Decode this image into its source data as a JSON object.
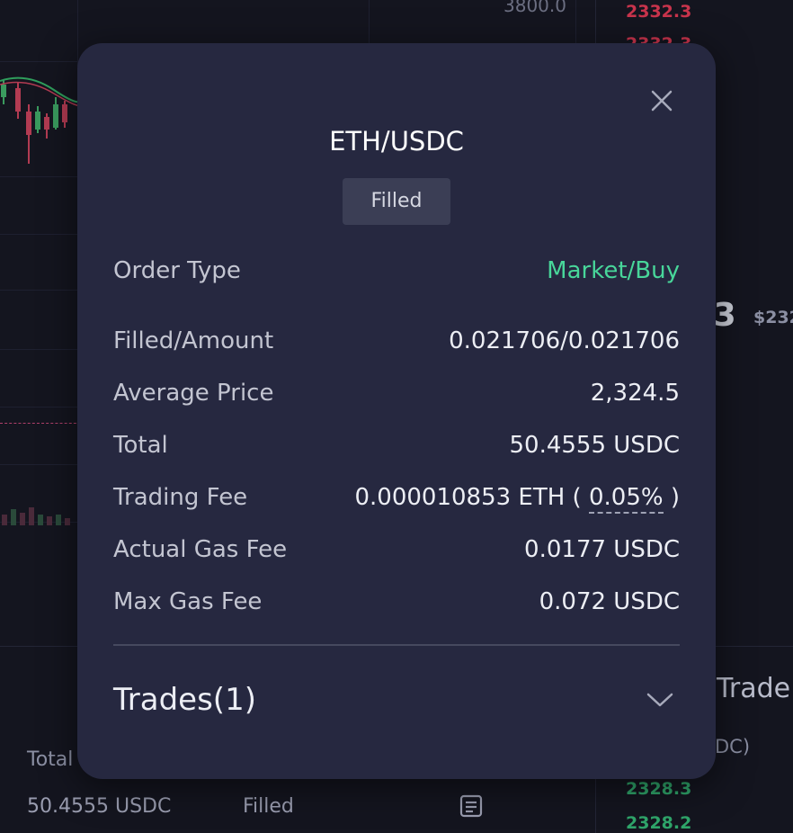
{
  "background": {
    "price_axis_top": "3800.0",
    "orderbook_asks": [
      "2332.3",
      "2332.3"
    ],
    "orderbook_bids": [
      "2328.3",
      "2328.2"
    ],
    "last_price_partial": ".3",
    "last_price_usd_partial": "$232",
    "trades_heading_partial": "Trade",
    "trades_unit_partial": "DC)",
    "orders_table": {
      "column_total": "Total",
      "row_total": "50.4555 USDC",
      "row_status": "Filled"
    }
  },
  "modal": {
    "title": "ETH/USDC",
    "status": "Filled",
    "rows": [
      {
        "label": "Order Type",
        "value": "Market/Buy"
      },
      {
        "label": "Filled/Amount",
        "value": "0.021706/0.021706"
      },
      {
        "label": "Average Price",
        "value": "2,324.5"
      },
      {
        "label": "Total",
        "value": "50.4555 USDC"
      },
      {
        "label": "Trading Fee",
        "value_prefix": "0.000010853 ETH ( ",
        "value_pct": "0.05%",
        "value_suffix": " )"
      },
      {
        "label": "Actual Gas Fee",
        "value": "0.0177 USDC"
      },
      {
        "label": "Max Gas Fee",
        "value": "0.072 USDC"
      }
    ],
    "trades_label": "Trades(1)"
  },
  "colors": {
    "accent_buy": "#48d69a",
    "ask_red": "#c9344c",
    "bid_green": "#2fa56a",
    "modal_bg": "#262840"
  },
  "icons": [
    "close-icon",
    "chevron-down-icon",
    "document-icon"
  ]
}
